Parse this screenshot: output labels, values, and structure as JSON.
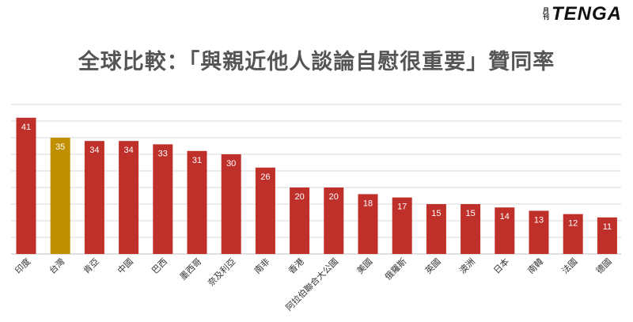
{
  "logo": {
    "small_top": "月",
    "small_bottom": "刊",
    "main": "TENGA"
  },
  "chart_data": {
    "type": "bar",
    "title": "全球比較：「與親近他人談論自慰很重要」贊同率",
    "xlabel": "",
    "ylabel": "",
    "ylim": [
      0,
      45
    ],
    "grid": true,
    "categories": [
      "印度",
      "台灣",
      "肯亞",
      "中國",
      "巴西",
      "墨西哥",
      "奈及利亞",
      "南非",
      "香港",
      "阿拉伯聯合大公國",
      "美國",
      "俄羅斯",
      "英國",
      "澳洲",
      "日本",
      "南韓",
      "法國",
      "德國"
    ],
    "values": [
      41,
      35,
      34,
      34,
      33,
      31,
      30,
      26,
      20,
      20,
      18,
      17,
      15,
      15,
      14,
      13,
      12,
      11
    ],
    "colors": {
      "default": "#C0302B",
      "highlight": "#C09000",
      "grid": "#D9D9D9",
      "axis": "#BFBFBF"
    },
    "highlight_index": 1
  }
}
